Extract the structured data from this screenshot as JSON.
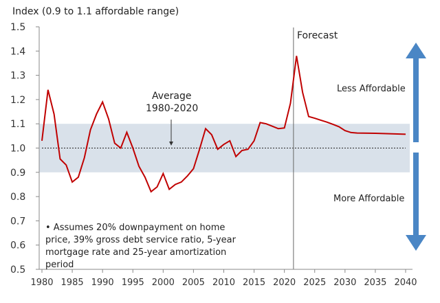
{
  "chart_data": {
    "type": "line",
    "ylabel": "Index (0.9 to 1.1 affordable range)",
    "ylim": [
      0.5,
      1.5
    ],
    "xlim": [
      1980,
      2040
    ],
    "yticks": [
      "0.5",
      "0.6",
      "0.7",
      "0.8",
      "0.9",
      "1.0",
      "1.1",
      "1.2",
      "1.3",
      "1.4",
      "1.5"
    ],
    "xticks": [
      "1980",
      "1985",
      "1990",
      "1995",
      "2000",
      "2005",
      "2010",
      "2015",
      "2020",
      "2025",
      "2030",
      "2035",
      "2040"
    ],
    "affordable_band": [
      0.9,
      1.1
    ],
    "average_line": 1.0,
    "forecast_start": 2021.5,
    "series": [
      {
        "color": "#c00000",
        "x": [
          1980,
          1981,
          1982,
          1983,
          1984,
          1985,
          1986,
          1987,
          1988,
          1989,
          1990,
          1991,
          1992,
          1993,
          1994,
          1995,
          1996,
          1997,
          1998,
          1999,
          2000,
          2001,
          2002,
          2003,
          2004,
          2005,
          2006,
          2007,
          2008,
          2009,
          2010,
          2011,
          2012,
          2013,
          2014,
          2015,
          2016,
          2017,
          2018,
          2019,
          2020,
          2021,
          2022,
          2023,
          2024,
          2025,
          2026,
          2027,
          2028,
          2029,
          2030,
          2031,
          2032,
          2035,
          2040
        ],
        "values": [
          1.03,
          1.24,
          1.14,
          0.955,
          0.93,
          0.86,
          0.88,
          0.96,
          1.075,
          1.14,
          1.19,
          1.12,
          1.02,
          1.0,
          1.065,
          1.0,
          0.925,
          0.88,
          0.82,
          0.84,
          0.895,
          0.83,
          0.85,
          0.86,
          0.885,
          0.915,
          0.995,
          1.08,
          1.055,
          0.995,
          1.015,
          1.03,
          0.965,
          0.99,
          0.995,
          1.03,
          1.105,
          1.1,
          1.09,
          1.08,
          1.083,
          1.185,
          1.38,
          1.23,
          1.13,
          1.123,
          1.115,
          1.107,
          1.098,
          1.088,
          1.072,
          1.064,
          1.062,
          1.061,
          1.057
        ]
      }
    ],
    "annotations": {
      "forecast": "Forecast",
      "average": [
        "Average",
        "1980-2020"
      ],
      "less": "Less Affordable",
      "more": "More Affordable",
      "note": "• Assumes 20% downpayment on home price, 39% gross debt service ratio, 5-year mortgage rate and 25-year amortization period"
    },
    "colors": {
      "band": "#d9e1ea",
      "arrow": "#4a86c5",
      "line": "#c00000"
    }
  }
}
